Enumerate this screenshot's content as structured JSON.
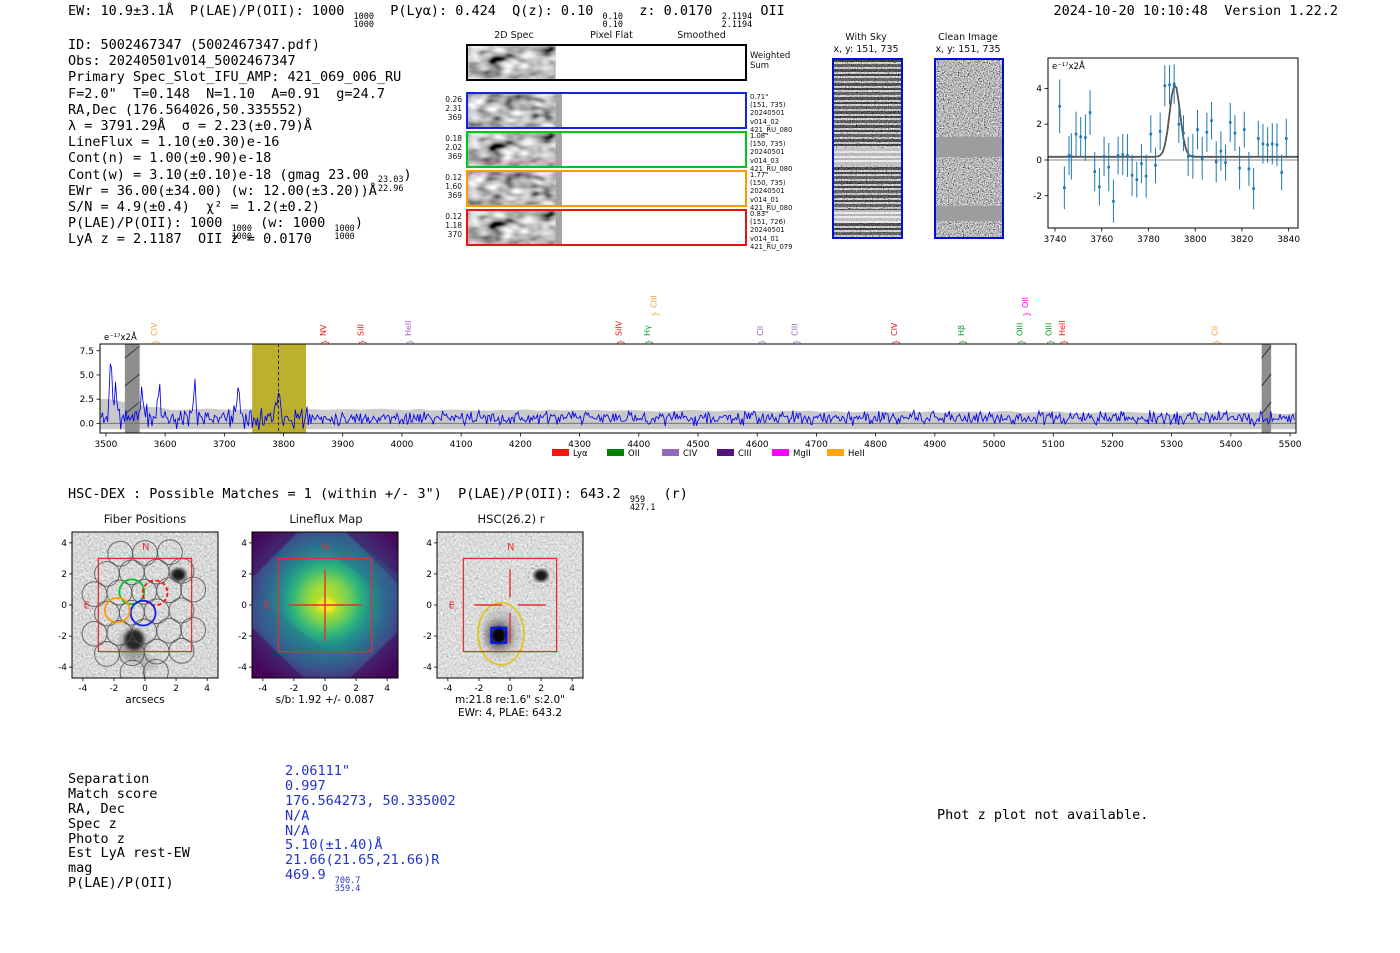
{
  "meta": {
    "timestamp": "2024-10-20 10:10:48",
    "version": "Version 1.22.2"
  },
  "top_line": {
    "segments": [
      {
        "t": "EW: 10.9±3.1Å  P(LAE)/P(OII): 1000 "
      },
      {
        "frac": [
          "1000",
          "1000"
        ]
      },
      {
        "t": "  P(Lyα): 0.424  Q(z): 0.10 "
      },
      {
        "frac": [
          "0.10",
          "0.10"
        ]
      },
      {
        "t": "  z: 0.0170 "
      },
      {
        "frac": [
          "2.1194",
          "2.1194"
        ]
      },
      {
        "t": " OII"
      }
    ]
  },
  "info_block": {
    "lines": [
      [
        {
          "t": "ID: 5002467347 (5002467347.pdf)"
        }
      ],
      [
        {
          "t": "Obs: 20240501v014_5002467347"
        }
      ],
      [
        {
          "t": "Primary Spec_Slot_IFU_AMP: 421_069_006_RU"
        }
      ],
      [
        {
          "t": "F=2.0\"  T=0.148  N=1.10  A=0.91  g=24.7"
        }
      ],
      [
        {
          "t": "RA,Dec (176.564026,50.335552)"
        }
      ],
      [
        {
          "t": "λ = 3791.29Å  σ = 2.23(±0.79)Å"
        }
      ],
      [
        {
          "t": "LineFlux = 1.10(±0.30)e-16"
        }
      ],
      [
        {
          "t": "Cont(n) = 1.00(±0.90)e-18"
        }
      ],
      [
        {
          "t": "Cont(w) = 3.10(±0.10)e-18 (gmag 23.00 "
        },
        {
          "frac": [
            "23.03",
            "22.96"
          ]
        },
        {
          "t": ")"
        }
      ],
      [
        {
          "t": "EWr = 36.00(±34.00) (w: 12.00(±3.20))Å"
        }
      ],
      [
        {
          "t": "S/N = 4.9(±0.4)  χ² = 1.2(±0.2)"
        }
      ],
      [
        {
          "t": "P(LAE)/P(OII): 1000 "
        },
        {
          "frac": [
            "1000",
            "1000"
          ]
        },
        {
          "t": " (w: 1000 "
        },
        {
          "frac": [
            "1000",
            "1000"
          ]
        },
        {
          "t": ")"
        }
      ],
      [
        {
          "t": "LyA z = 2.1187  OII z = 0.0170"
        }
      ]
    ]
  },
  "spec2d": {
    "col_headers": [
      "2D Spec",
      "Pixel Flat",
      "Smoothed"
    ],
    "rows": [
      {
        "border": "black",
        "left": [],
        "right": [
          "Weighted",
          "Sum"
        ]
      },
      {
        "border": "blue",
        "left": [
          "0.26",
          "2.31",
          "369"
        ],
        "right": [
          "0.71\"",
          "(151, 735)",
          "20240501",
          "v014_02",
          "421_RU_080"
        ]
      },
      {
        "border": "green",
        "left": [
          "0.18",
          "2.02",
          "369"
        ],
        "right": [
          "1.08\"",
          "(150, 735)",
          "20240501",
          "v014_03",
          "421_RU_080"
        ]
      },
      {
        "border": "orange",
        "left": [
          "0.12",
          "1.60",
          "369"
        ],
        "right": [
          "1.77\"",
          "(150, 735)",
          "20240501",
          "v014_01",
          "421_RU_080"
        ]
      },
      {
        "border": "red",
        "left": [
          "0.12",
          "1.18",
          "370"
        ],
        "right": [
          "0.83\"",
          "(151, 726)",
          "20240501",
          "v014_01",
          "421_RU_079"
        ]
      }
    ]
  },
  "sky_panels": {
    "with_sky": {
      "title": "With Sky",
      "subtitle": "x, y: 151, 735"
    },
    "clean": {
      "title": "Clean Image",
      "subtitle": "x, y: 151, 735"
    }
  },
  "hsc_dex_line": {
    "segments": [
      {
        "t": "HSC-DEX : Possible Matches = 1 (within +/- 3\")  P(LAE)/P(OII): 643.2 "
      },
      {
        "frac": [
          "959",
          "427.1"
        ]
      },
      {
        "t": " (r)"
      }
    ]
  },
  "cutouts": {
    "fiber": {
      "title": "Fiber Positions",
      "xlabel": "arcsecs",
      "xticks": [
        -4,
        -2,
        0,
        2,
        4
      ],
      "yticks": [
        4,
        2,
        0,
        -2,
        -4
      ],
      "north": "N",
      "east": "E"
    },
    "lineflux": {
      "title": "Lineflux Map",
      "caption": "s/b: 1.92 +/- 0.087",
      "xticks": [
        -4,
        -2,
        0,
        2,
        4
      ],
      "yticks": [
        4,
        2,
        0,
        -2,
        -4
      ],
      "north": "N",
      "east": "E"
    },
    "hsc": {
      "title": "HSC(26.2) r",
      "caption1": "m:21.8  re:1.6\"  s:2.0\"",
      "caption2": "EWr: 4, PLAE: 643.2",
      "xticks": [
        -4,
        -2,
        0,
        2,
        4
      ],
      "yticks": [
        4,
        2,
        0,
        -2,
        -4
      ],
      "north": "N",
      "east": "E"
    }
  },
  "match_table": {
    "labels": [
      "Separation",
      "Match score",
      "RA, Dec",
      "Spec z",
      "Photo z",
      "Est LyA rest-EW",
      "mag",
      "P(LAE)/P(OII)"
    ],
    "values": [
      [
        {
          "t": "2.06111\""
        }
      ],
      [
        {
          "t": "0.997"
        }
      ],
      [
        {
          "t": "176.564273, 50.335002"
        }
      ],
      [
        {
          "t": "N/A"
        }
      ],
      [
        {
          "t": "N/A"
        }
      ],
      [
        {
          "t": "5.10(±1.40)Å"
        }
      ],
      [
        {
          "t": "21.66(21.65,21.66)R"
        }
      ],
      [
        {
          "t": "469.9 "
        },
        {
          "frac": [
            "700.7",
            "359.4"
          ]
        }
      ]
    ],
    "value_color": "#2233cc"
  },
  "notice": "Phot z plot not available.",
  "chart_data": [
    {
      "id": "emission-line-fit",
      "type": "scatter",
      "annotation": "e⁻¹⁷x2Å",
      "xlim": [
        3737,
        3844
      ],
      "ylim": [
        -3.8,
        5.7
      ],
      "xticks": [
        3740,
        3760,
        3780,
        3800,
        3820,
        3840
      ],
      "yticks": [
        -2,
        0,
        2,
        4
      ],
      "marker_color": "#1f77b4",
      "fit_color": "#555555",
      "fit": {
        "mu": 3791.29,
        "sigma": 2.23,
        "amplitude": 4.05,
        "baseline": 0.18
      },
      "points": [
        [
          3742,
          3.0,
          1.5
        ],
        [
          3744,
          -1.55,
          1.2
        ],
        [
          3746,
          0.25,
          1.1
        ],
        [
          3747,
          0.2,
          1.3
        ],
        [
          3749,
          1.45,
          1.25
        ],
        [
          3751,
          1.3,
          1.1
        ],
        [
          3753,
          1.25,
          1.3
        ],
        [
          3755,
          2.65,
          1.25
        ],
        [
          3757,
          -0.65,
          1.1
        ],
        [
          3759,
          -1.5,
          1.05
        ],
        [
          3761,
          0.2,
          1.1
        ],
        [
          3763,
          -0.4,
          1.35
        ],
        [
          3765,
          -2.3,
          1.2
        ],
        [
          3767,
          0.25,
          1.05
        ],
        [
          3769,
          0.3,
          1.15
        ],
        [
          3771,
          0.25,
          1.2
        ],
        [
          3773,
          -0.85,
          1.15
        ],
        [
          3775,
          -1.1,
          1.0
        ],
        [
          3777,
          -0.2,
          1.1
        ],
        [
          3779,
          -0.9,
          1.2
        ],
        [
          3781,
          1.45,
          1.05
        ],
        [
          3783,
          -0.3,
          1.0
        ],
        [
          3785,
          1.6,
          1.05
        ],
        [
          3787,
          4.15,
          1.15
        ],
        [
          3789,
          4.2,
          1.1
        ],
        [
          3791,
          4.25,
          1.1
        ],
        [
          3793,
          2.0,
          1.05
        ],
        [
          3795,
          1.5,
          1.0
        ],
        [
          3797,
          0.2,
          1.1
        ],
        [
          3799,
          0.2,
          1.25
        ],
        [
          3801,
          1.7,
          1.1
        ],
        [
          3803,
          0.1,
          1.2
        ],
        [
          3805,
          1.55,
          1.1
        ],
        [
          3807,
          2.2,
          1.05
        ],
        [
          3809,
          -0.1,
          1.15
        ],
        [
          3811,
          0.5,
          1.1
        ],
        [
          3813,
          -0.15,
          1.0
        ],
        [
          3815,
          2.1,
          1.1
        ],
        [
          3817,
          1.5,
          1.0
        ],
        [
          3819,
          -0.45,
          1.2
        ],
        [
          3821,
          1.7,
          1.0
        ],
        [
          3823,
          -0.5,
          0.95
        ],
        [
          3825,
          -1.6,
          1.15
        ],
        [
          3827,
          1.2,
          1.0
        ],
        [
          3829,
          0.9,
          1.1
        ],
        [
          3831,
          0.85,
          1.0
        ],
        [
          3833,
          0.9,
          1.15
        ],
        [
          3835,
          0.85,
          1.2
        ],
        [
          3837,
          -0.7,
          1.0
        ],
        [
          3839,
          1.2,
          1.1
        ]
      ]
    },
    {
      "id": "full-spectrum",
      "type": "line",
      "annotation": "e⁻¹⁷x2Å",
      "xlim": [
        3490,
        5510
      ],
      "ylim": [
        -1.0,
        8.2
      ],
      "xticks": [
        3500,
        3600,
        3700,
        3800,
        3900,
        4000,
        4100,
        4200,
        4300,
        4400,
        4500,
        4600,
        4700,
        4800,
        4900,
        5000,
        5100,
        5200,
        5300,
        5400,
        5500
      ],
      "yticks": [
        0.0,
        2.5,
        5.0,
        7.5
      ],
      "line_color": "#0000ee",
      "detected_line_wavelength": 3791.29,
      "highlight_band": [
        3747,
        3838
      ],
      "highlight_color": "#b9ac23",
      "masked_bands": [
        [
          3532,
          3557
        ],
        [
          5452,
          5468
        ]
      ],
      "error_band": {
        "top": [
          [
            3490,
            2.6
          ],
          [
            3600,
            1.5
          ],
          [
            5510,
            1.05
          ]
        ],
        "bottom": -0.6
      },
      "noise_model": {
        "seed": 11,
        "mean": 0.55,
        "amp_left": 1.3,
        "amp_right": 0.85,
        "split": 3845,
        "peak": {
          "mu": 3791.29,
          "amp": 3.0,
          "sigma": 3.2
        },
        "bumps": [
          [
            3508,
            6.2,
            2.2
          ],
          [
            3516,
            3.4,
            2.0
          ],
          [
            3560,
            3.2,
            2.0
          ],
          [
            3590,
            3.6,
            2.0
          ],
          [
            3650,
            3.0,
            2.0
          ],
          [
            3724,
            3.5,
            2.2
          ]
        ]
      },
      "line_markers": [
        {
          "label": "CIV",
          "wavelength": 3581,
          "color": "#f0a22e",
          "raised": false
        },
        {
          "label": "NV",
          "wavelength": 3867,
          "color": "#ee1111",
          "raised": false
        },
        {
          "label": "SiII",
          "wavelength": 3930,
          "color": "#ee1111",
          "raised": false
        },
        {
          "label": "HeII",
          "wavelength": 4010,
          "color": "#9467bd",
          "raised": false
        },
        {
          "label": "SiIV",
          "wavelength": 4366,
          "color": "#ee1111",
          "raised": false
        },
        {
          "label": "Hγ",
          "wavelength": 4414,
          "color": "#0a9a2c",
          "raised": false
        },
        {
          "label": "CIII",
          "wavelength": 4425,
          "color": "#f0a22e",
          "raised": true
        },
        {
          "label": "CII",
          "wavelength": 4605,
          "color": "#9467bd",
          "raised": false
        },
        {
          "label": "CIII",
          "wavelength": 4663,
          "color": "#9467bd",
          "raised": false
        },
        {
          "label": "CIV",
          "wavelength": 4831,
          "color": "#ee1111",
          "raised": false
        },
        {
          "label": "Hβ",
          "wavelength": 4944,
          "color": "#0a9a2c",
          "raised": false
        },
        {
          "label": "OIII",
          "wavelength": 5043,
          "color": "#0a9a2c",
          "raised": false
        },
        {
          "label": "OII",
          "wavelength": 5052,
          "color": "#ff00ff",
          "raised": true
        },
        {
          "label": "OIII",
          "wavelength": 5092,
          "color": "#0a9a2c",
          "raised": false
        },
        {
          "label": "HeII",
          "wavelength": 5115,
          "color": "#ee1111",
          "raised": false
        },
        {
          "label": "CII",
          "wavelength": 5372,
          "color": "#f0a22e",
          "raised": false
        }
      ],
      "legend": [
        {
          "label": "Lyα",
          "color": "#ff1111"
        },
        {
          "label": "OII",
          "color": "#018001"
        },
        {
          "label": "CIV",
          "color": "#9467bd"
        },
        {
          "label": "CIII",
          "color": "#55127b"
        },
        {
          "label": "MgII",
          "color": "#ff00ff"
        },
        {
          "label": "HeII",
          "color": "#ffa600"
        }
      ]
    }
  ]
}
